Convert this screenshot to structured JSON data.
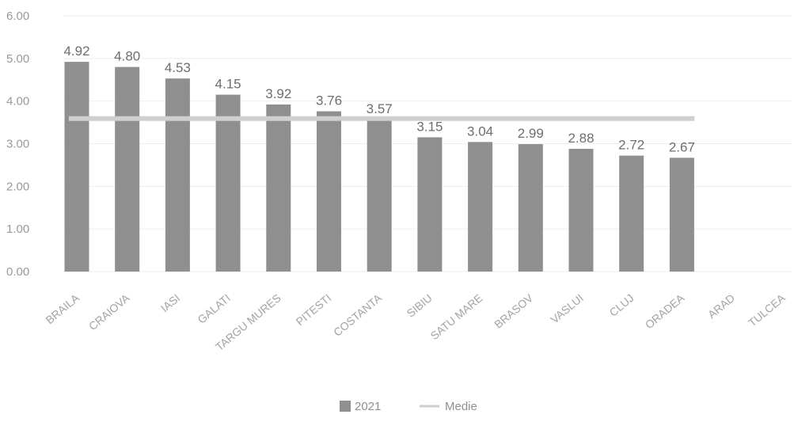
{
  "chart_data": {
    "type": "bar",
    "categories": [
      "BRAILA",
      "CRAIOVA",
      "IASI",
      "GALATI",
      "TARGU MURES",
      "PITESTI",
      "COSTANTA",
      "SIBIU",
      "SATU MARE",
      "BRASOV",
      "VASLUI",
      "CLUJ",
      "ORADEA",
      "ARAD",
      "TULCEA"
    ],
    "series": [
      {
        "name": "2021",
        "kind": "bar",
        "color": "#8f8f8f",
        "values": [
          4.92,
          4.8,
          4.53,
          4.15,
          3.92,
          3.76,
          3.57,
          3.15,
          3.04,
          2.99,
          2.88,
          2.72,
          2.67,
          null,
          null
        ],
        "labels": [
          "4.92",
          "4.80",
          "4.53",
          "4.15",
          "3.92",
          "3.76",
          "3.57",
          "3.15",
          "3.04",
          "2.99",
          "2.88",
          "2.72",
          "2.67",
          "",
          ""
        ]
      },
      {
        "name": "Medie",
        "kind": "line",
        "color": "#cfcfcf",
        "values": [
          3.59,
          3.59,
          3.59,
          3.59,
          3.59,
          3.59,
          3.59,
          3.59,
          3.59,
          3.59,
          3.59,
          3.59,
          3.59,
          null,
          null
        ]
      }
    ],
    "yticks": [
      "0.00",
      "1.00",
      "2.00",
      "3.00",
      "4.00",
      "5.00",
      "6.00"
    ],
    "ylim": [
      0,
      6
    ],
    "grid": true,
    "legend_position": "bottom"
  }
}
